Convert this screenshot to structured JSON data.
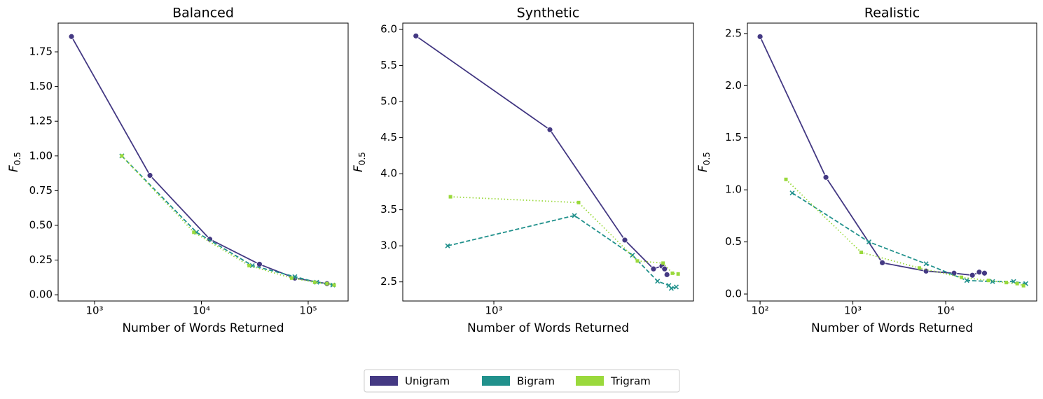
{
  "chart_data": [
    {
      "type": "line",
      "title": "Balanced",
      "xlabel": "Number of Words Returned",
      "ylabel": "F",
      "ylabel_sub": "0.5",
      "xscale": "log",
      "legend": "bottom center",
      "xlim": [
        456,
        236600
      ],
      "ylim": [
        -0.045,
        1.957
      ],
      "xticks": [
        {
          "value": 1000,
          "label": "10³"
        },
        {
          "value": 10000,
          "label": "10⁴"
        },
        {
          "value": 100000,
          "label": "10⁵"
        }
      ],
      "yticks": [
        {
          "value": 0,
          "label": "0.00"
        },
        0.25,
        {
          "value": 0.5,
          "label": "0.50"
        },
        0.75,
        {
          "value": 1,
          "label": "1.00"
        },
        1.25,
        {
          "value": 1.5,
          "label": "1.50"
        },
        1.75
      ],
      "series": [
        {
          "name": "Unigram",
          "color": "#443983",
          "linestyle": "solid",
          "marker": "circle",
          "x": [
            608,
            3300,
            12000,
            35000,
            75000,
            150000
          ],
          "values": [
            1.86,
            0.86,
            0.4,
            0.22,
            0.12,
            0.08
          ]
        },
        {
          "name": "Bigram",
          "color": "#21918c",
          "linestyle": "dashed",
          "marker": "x",
          "x": [
            1800,
            9000,
            30000,
            75000,
            120000,
            170000
          ],
          "values": [
            1.0,
            0.45,
            0.21,
            0.13,
            0.09,
            0.07
          ]
        },
        {
          "name": "Trigram",
          "color": "#9ad93c",
          "linestyle": "dotted",
          "marker": "square",
          "x": [
            1800,
            8500,
            28000,
            70000,
            115000,
            150000,
            175000
          ],
          "values": [
            1.0,
            0.45,
            0.21,
            0.12,
            0.09,
            0.08,
            0.07
          ]
        }
      ]
    },
    {
      "type": "line",
      "title": "Synthetic",
      "xlabel": "Number of Words Returned",
      "ylabel": "F",
      "ylabel_sub": "0.5",
      "xscale": "log",
      "xlim": [
        473,
        5160
      ],
      "ylim": [
        2.235,
        6.088
      ],
      "xticks": [
        {
          "value": 1000,
          "label": "10³"
        }
      ],
      "yticks": [
        2.5,
        {
          "value": 3,
          "label": "3.0"
        },
        3.5,
        {
          "value": 4,
          "label": "4.0"
        },
        4.5,
        {
          "value": 5,
          "label": "5.0"
        },
        5.5,
        {
          "value": 6,
          "label": "6.0"
        }
      ],
      "series": [
        {
          "name": "Unigram",
          "color": "#443983",
          "linestyle": "solid",
          "marker": "circle",
          "x": [
            527,
            1585,
            2935,
            3715,
            3980,
            4070,
            4150
          ],
          "values": [
            5.91,
            4.61,
            3.08,
            2.68,
            2.72,
            2.68,
            2.6
          ]
        },
        {
          "name": "Bigram",
          "color": "#21918c",
          "linestyle": "dashed",
          "marker": "x",
          "x": [
            684,
            1940,
            3125,
            3840,
            4215,
            4300,
            4480
          ],
          "values": [
            3.0,
            3.42,
            2.87,
            2.51,
            2.45,
            2.41,
            2.43
          ]
        },
        {
          "name": "Trigram",
          "color": "#9ad93c",
          "linestyle": "dotted",
          "marker": "square",
          "x": [
            700,
            2007,
            3255,
            4020,
            4340,
            4550
          ],
          "values": [
            3.68,
            3.6,
            2.79,
            2.76,
            2.62,
            2.61
          ]
        }
      ]
    },
    {
      "type": "line",
      "title": "Realistic",
      "xlabel": "Number of Words Returned",
      "ylabel": "F",
      "ylabel_sub": "0.5",
      "xscale": "log",
      "xlim": [
        73,
        95700
      ],
      "ylim": [
        -0.067,
        2.6
      ],
      "xticks": [
        {
          "value": 100,
          "label": "10²"
        },
        {
          "value": 1000,
          "label": "10³"
        },
        {
          "value": 10000,
          "label": "10⁴"
        }
      ],
      "yticks": [
        {
          "value": 0,
          "label": "0.0"
        },
        0.5,
        {
          "value": 1,
          "label": "1.0"
        },
        1.5,
        {
          "value": 2,
          "label": "2.0"
        },
        2.5
      ],
      "series": [
        {
          "name": "Unigram",
          "color": "#443983",
          "linestyle": "solid",
          "marker": "circle",
          "x": [
            100,
            512,
            2077,
            6150,
            12300,
            19400,
            23000,
            26200
          ],
          "values": [
            2.47,
            1.12,
            0.3,
            0.22,
            0.2,
            0.18,
            0.21,
            0.2
          ]
        },
        {
          "name": "Bigram",
          "color": "#21918c",
          "linestyle": "dashed",
          "marker": "x",
          "x": [
            222,
            1490,
            6150,
            16900,
            32000,
            54000,
            73000
          ],
          "values": [
            0.97,
            0.5,
            0.29,
            0.13,
            0.12,
            0.12,
            0.1
          ]
        },
        {
          "name": "Trigram",
          "color": "#9ad93c",
          "linestyle": "dotted",
          "marker": "square",
          "x": [
            190,
            1230,
            5200,
            14800,
            29000,
            45000,
            59000,
            69000
          ],
          "values": [
            1.1,
            0.4,
            0.25,
            0.16,
            0.13,
            0.11,
            0.1,
            0.08
          ]
        }
      ]
    }
  ]
}
